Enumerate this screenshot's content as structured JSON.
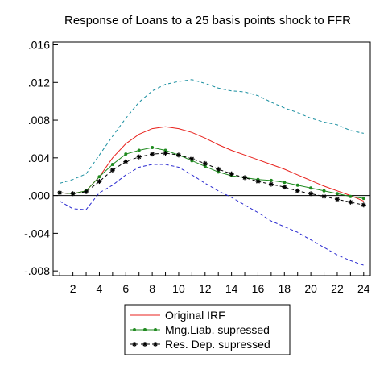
{
  "chart_data": {
    "type": "line",
    "title": "Response of Loans to a 25 basis points shock to FFR",
    "xlabel": "",
    "ylabel": "",
    "x": [
      1,
      2,
      3,
      4,
      5,
      6,
      7,
      8,
      9,
      10,
      11,
      12,
      13,
      14,
      15,
      16,
      17,
      18,
      19,
      20,
      21,
      22,
      23,
      24
    ],
    "xlim": [
      0.5,
      24.5
    ],
    "ylim": [
      -0.0085,
      0.0163
    ],
    "x_ticks": [
      2,
      4,
      6,
      8,
      10,
      12,
      14,
      16,
      18,
      20,
      22,
      24
    ],
    "y_ticks": [
      {
        "value": 0.016,
        "label": ".016"
      },
      {
        "value": 0.012,
        "label": ".012"
      },
      {
        "value": 0.008,
        "label": ".008"
      },
      {
        "value": 0.004,
        "label": ".004"
      },
      {
        "value": 0.0,
        "label": ".000"
      },
      {
        "value": -0.004,
        "label": "-.004"
      },
      {
        "value": -0.008,
        "label": "-.008"
      }
    ],
    "zero_line": true,
    "legend_position": "bottom-center",
    "series": [
      {
        "name": "Original IRF",
        "color": "#e8211c",
        "style": "solid",
        "marker": "none",
        "in_legend": true,
        "values": [
          0.0003,
          0.0002,
          0.0005,
          0.002,
          0.004,
          0.0055,
          0.0065,
          0.0071,
          0.0073,
          0.0071,
          0.0067,
          0.0061,
          0.0054,
          0.0048,
          0.0043,
          0.0038,
          0.0033,
          0.0028,
          0.0022,
          0.0016,
          0.001,
          0.0005,
          0.0,
          -0.0006
        ]
      },
      {
        "name": "Mng.Liab. supressed",
        "color": "#1f8a1f",
        "style": "solid",
        "marker": "dot",
        "in_legend": true,
        "values": [
          0.0003,
          0.0002,
          0.0005,
          0.002,
          0.0033,
          0.0044,
          0.0048,
          0.0051,
          0.0048,
          0.0043,
          0.0037,
          0.0031,
          0.0025,
          0.0021,
          0.0019,
          0.0017,
          0.0016,
          0.0014,
          0.0011,
          0.0008,
          0.0005,
          0.0002,
          -0.0001,
          -0.0003
        ]
      },
      {
        "name": "Res. Dep. supressed",
        "color": "#000000",
        "style": "dashed",
        "marker": "star",
        "in_legend": true,
        "values": [
          0.0003,
          0.0002,
          0.0004,
          0.0015,
          0.0027,
          0.0036,
          0.0041,
          0.0044,
          0.0045,
          0.0043,
          0.0039,
          0.0034,
          0.0028,
          0.0023,
          0.0019,
          0.0015,
          0.0012,
          0.0009,
          0.0005,
          0.0002,
          -0.0001,
          -0.0004,
          -0.0007,
          -0.001
        ]
      },
      {
        "name": "",
        "color": "#1a8fa0",
        "style": "dashed",
        "marker": "none",
        "in_legend": false,
        "values": [
          0.0013,
          0.0017,
          0.0023,
          0.0043,
          0.0063,
          0.0082,
          0.0099,
          0.0111,
          0.0118,
          0.0121,
          0.0123,
          0.0119,
          0.0114,
          0.0111,
          0.011,
          0.0106,
          0.0099,
          0.0093,
          0.0088,
          0.0082,
          0.0078,
          0.0075,
          0.0069,
          0.0066
        ]
      },
      {
        "name": "",
        "color": "#2a2ad0",
        "style": "dashed",
        "marker": "none",
        "in_legend": false,
        "values": [
          -0.0006,
          -0.0014,
          -0.0015,
          0.0003,
          0.0011,
          0.0022,
          0.003,
          0.0033,
          0.0033,
          0.003,
          0.0022,
          0.0013,
          0.0005,
          -0.0002,
          -0.001,
          -0.0018,
          -0.0027,
          -0.0033,
          -0.0039,
          -0.0047,
          -0.0055,
          -0.0063,
          -0.0069,
          -0.0074
        ]
      }
    ]
  }
}
